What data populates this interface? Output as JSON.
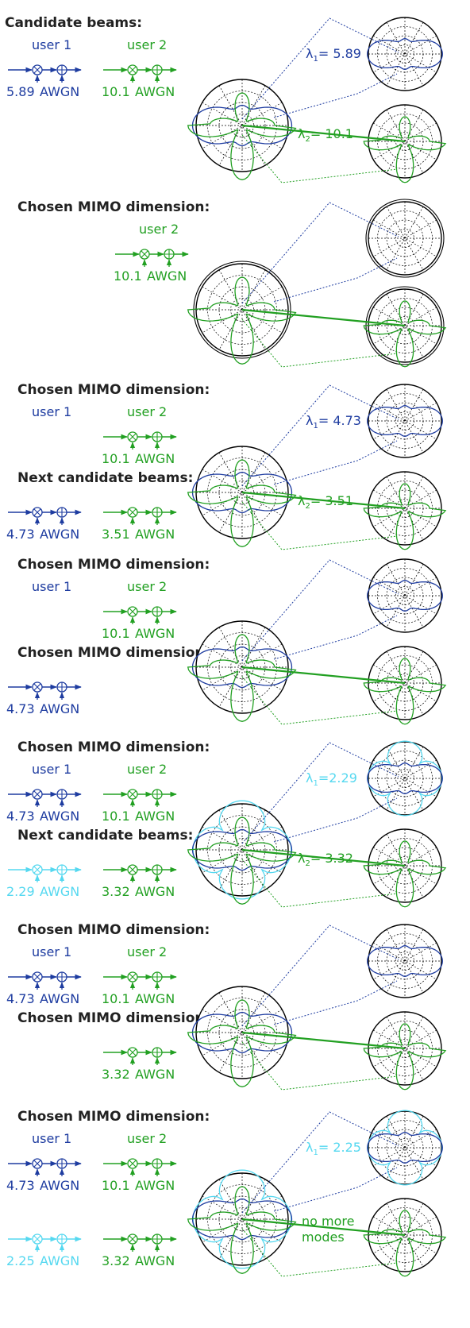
{
  "colors": {
    "blue": "#1e3ca0",
    "green": "#22a022",
    "cyan": "#55d8f0",
    "black": "#000000"
  },
  "panels": [
    {
      "heading": "Candidate beams:",
      "rows": [
        {
          "label": "",
          "chains": [
            {
              "user": "user 1",
              "gain": "5.89",
              "awgn": "AWGN",
              "color": "blue"
            },
            {
              "user": "user 2",
              "gain": "10.1",
              "awgn": "AWGN",
              "color": "green"
            }
          ]
        }
      ],
      "lambdas": [
        {
          "sub": "1",
          "text": "= 5.89",
          "color": "blue"
        },
        {
          "sub": "2",
          "text": "= 10.1",
          "color": "green"
        }
      ],
      "note": "",
      "main_patterns": [
        "blue",
        "green"
      ],
      "top_patterns": [
        "blue"
      ],
      "bottom_patterns": [
        "green"
      ],
      "double_ring": false
    },
    {
      "heading": "Chosen MIMO dimension:",
      "rows": [
        {
          "label": "",
          "chains": [
            {
              "user": "user 2",
              "gain": "10.1",
              "awgn": "AWGN",
              "color": "green"
            }
          ]
        }
      ],
      "lambdas": [],
      "note": "",
      "main_patterns": [
        "green"
      ],
      "top_patterns": [],
      "bottom_patterns": [
        "green"
      ],
      "double_ring": true
    },
    {
      "heading": "Chosen MIMO dimension:",
      "rows": [
        {
          "label": "",
          "chains": [
            {
              "user": "user 1",
              "gain": "",
              "awgn": "",
              "color": "blue",
              "user_only": true
            },
            {
              "user": "user 2",
              "gain": "10.1",
              "awgn": "AWGN",
              "color": "green"
            }
          ]
        },
        {
          "label": "Next candidate beams:",
          "chains": [
            {
              "user": "",
              "gain": "4.73",
              "awgn": "AWGN",
              "color": "blue"
            },
            {
              "user": "",
              "gain": "3.51",
              "awgn": "AWGN",
              "color": "green"
            }
          ]
        }
      ],
      "lambdas": [
        {
          "sub": "1",
          "text": "= 4.73",
          "color": "blue"
        },
        {
          "sub": "2",
          "text": "= 3.51",
          "color": "green"
        }
      ],
      "note": "",
      "main_patterns": [
        "blue",
        "green"
      ],
      "top_patterns": [
        "blue"
      ],
      "bottom_patterns": [
        "green"
      ],
      "double_ring": false
    },
    {
      "heading": "Chosen MIMO dimension:",
      "rows": [
        {
          "label": "",
          "chains": [
            {
              "user": "user 1",
              "gain": "",
              "awgn": "",
              "color": "blue",
              "user_only": true
            },
            {
              "user": "user 2",
              "gain": "10.1",
              "awgn": "AWGN",
              "color": "green"
            }
          ]
        },
        {
          "label": "Chosen MIMO dimension:",
          "chains": [
            {
              "user": "",
              "gain": "4.73",
              "awgn": "AWGN",
              "color": "blue"
            }
          ]
        }
      ],
      "lambdas": [],
      "note": "",
      "main_patterns": [
        "blue",
        "green"
      ],
      "top_patterns": [
        "blue"
      ],
      "bottom_patterns": [
        "green"
      ],
      "double_ring": false
    },
    {
      "heading": "Chosen MIMO dimension:",
      "rows": [
        {
          "label": "",
          "chains": [
            {
              "user": "user 1",
              "gain": "4.73",
              "awgn": "AWGN",
              "color": "blue"
            },
            {
              "user": "user 2",
              "gain": "10.1",
              "awgn": "AWGN",
              "color": "green"
            }
          ]
        },
        {
          "label": "Next candidate beams:",
          "chains": [
            {
              "user": "",
              "gain": "2.29",
              "awgn": "AWGN",
              "color": "cyan"
            },
            {
              "user": "",
              "gain": "3.32",
              "awgn": "AWGN",
              "color": "green"
            }
          ]
        }
      ],
      "lambdas": [
        {
          "sub": "1",
          "text": "=2.29",
          "color": "cyan"
        },
        {
          "sub": "2",
          "text": "= 3.32",
          "color": "green"
        }
      ],
      "note": "",
      "main_patterns": [
        "cyan",
        "blue",
        "green"
      ],
      "top_patterns": [
        "cyan",
        "blue"
      ],
      "bottom_patterns": [
        "green"
      ],
      "double_ring": false
    },
    {
      "heading": "Chosen MIMO dimension:",
      "rows": [
        {
          "label": "",
          "chains": [
            {
              "user": "user 1",
              "gain": "4.73",
              "awgn": "AWGN",
              "color": "blue"
            },
            {
              "user": "user 2",
              "gain": "10.1",
              "awgn": "AWGN",
              "color": "green"
            }
          ]
        },
        {
          "label": "Chosen MIMO dimension:",
          "chains": [
            {
              "user": "",
              "gain": "",
              "awgn": "",
              "color": "green",
              "spacer": true
            },
            {
              "user": "",
              "gain": "3.32",
              "awgn": "AWGN",
              "color": "green"
            }
          ]
        }
      ],
      "lambdas": [],
      "note": "",
      "main_patterns": [
        "blue",
        "green"
      ],
      "top_patterns": [
        "blue"
      ],
      "bottom_patterns": [
        "green"
      ],
      "double_ring": false
    },
    {
      "heading": "Chosen MIMO dimension:",
      "rows": [
        {
          "label": "",
          "chains": [
            {
              "user": "user 1",
              "gain": "4.73",
              "awgn": "AWGN",
              "color": "blue"
            },
            {
              "user": "user 2",
              "gain": "10.1",
              "awgn": "AWGN",
              "color": "green"
            }
          ]
        },
        {
          "label": "",
          "chains": [
            {
              "user": "",
              "gain": "2.25",
              "awgn": "AWGN",
              "color": "cyan"
            },
            {
              "user": "",
              "gain": "3.32",
              "awgn": "AWGN",
              "color": "green"
            }
          ]
        }
      ],
      "lambdas": [
        {
          "sub": "1",
          "text": "= 2.25",
          "color": "cyan"
        }
      ],
      "note": "no more modes",
      "main_patterns": [
        "cyan",
        "blue",
        "green"
      ],
      "top_patterns": [
        "cyan",
        "blue"
      ],
      "bottom_patterns": [
        "green"
      ],
      "double_ring": false
    }
  ]
}
